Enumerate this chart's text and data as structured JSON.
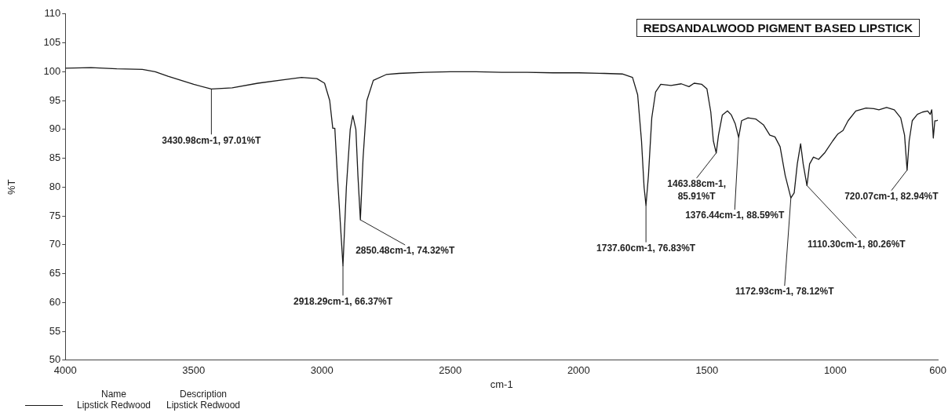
{
  "chart_data": {
    "type": "line",
    "title": "REDSANDALWOOD PIGMENT BASED LIPSTICK",
    "xlabel": "cm-1",
    "ylabel": "%T",
    "xlim": [
      4000,
      600
    ],
    "xticks": [
      4000,
      3500,
      3000,
      2500,
      2000,
      1500,
      1000,
      600
    ],
    "ylim": [
      50,
      110
    ],
    "yticks": [
      50,
      55,
      60,
      65,
      70,
      75,
      80,
      85,
      90,
      95,
      100,
      105,
      110
    ],
    "grid": false,
    "legend": "bottom left",
    "legend_title": "Name",
    "marker": "none",
    "line_style": "solid",
    "series": [
      {
        "name": "Lipstick Redwood",
        "color": "#1a1a1a",
        "x": [
          4000,
          3900,
          3800,
          3700,
          3650,
          3600,
          3500,
          3430.98,
          3350,
          3250,
          3150,
          3080,
          3020,
          2990,
          2970,
          2958,
          2950,
          2940,
          2918.29,
          2905,
          2890,
          2880,
          2868,
          2860,
          2850.48,
          2840,
          2825,
          2800,
          2750,
          2700,
          2600,
          2500,
          2400,
          2300,
          2200,
          2100,
          2000,
          1900,
          1830,
          1790,
          1770,
          1755,
          1745,
          1737.6,
          1728,
          1715,
          1700,
          1680,
          1640,
          1600,
          1570,
          1550,
          1520,
          1500,
          1485,
          1475,
          1463.88,
          1455,
          1440,
          1420,
          1405,
          1390,
          1376.44,
          1365,
          1340,
          1310,
          1280,
          1255,
          1235,
          1215,
          1195,
          1172.93,
          1160,
          1148,
          1135,
          1125,
          1110.3,
          1100,
          1085,
          1065,
          1040,
          1010,
          990,
          970,
          950,
          920,
          880,
          850,
          830,
          800,
          770,
          745,
          730,
          720.07,
          712,
          700,
          680,
          660,
          640,
          630,
          624,
          618,
          612,
          605,
          600
        ],
        "values": [
          100.6,
          100.7,
          100.5,
          100.4,
          100.0,
          99.2,
          97.8,
          97.01,
          97.2,
          98.0,
          98.6,
          99.0,
          98.8,
          98.0,
          95,
          90.2,
          90.2,
          82,
          66.37,
          80,
          90,
          92.4,
          90,
          82,
          74.32,
          85,
          95,
          98.5,
          99.5,
          99.7,
          99.9,
          100.0,
          100.0,
          99.9,
          99.9,
          99.8,
          99.8,
          99.7,
          99.6,
          99.0,
          96,
          88,
          80,
          76.83,
          82,
          92,
          96.5,
          97.8,
          97.6,
          97.9,
          97.4,
          98.0,
          97.8,
          97.0,
          93,
          88,
          85.91,
          89,
          92.5,
          93.2,
          92.5,
          91,
          88.59,
          91.5,
          92.0,
          91.8,
          90.8,
          89,
          88.7,
          87,
          82,
          78.12,
          79,
          84,
          87.5,
          84,
          80.26,
          84,
          85.2,
          84.8,
          86,
          88,
          89.2,
          89.8,
          91.5,
          93.2,
          93.7,
          93.6,
          93.4,
          93.8,
          93.4,
          92.0,
          89,
          82.94,
          88,
          91.5,
          92.6,
          93.0,
          93.2,
          92.6,
          93.4,
          88.5,
          91.5,
          91.5,
          91.6
        ]
      }
    ],
    "annotations": [
      {
        "text": "3430.98cm-1, 97.01%T",
        "x": 3430.98,
        "y": 97.01
      },
      {
        "text": "2918.29cm-1, 66.37%T",
        "x": 2918.29,
        "y": 66.37
      },
      {
        "text": "2850.48cm-1, 74.32%T",
        "x": 2850.48,
        "y": 74.32
      },
      {
        "text": "1737.60cm-1, 76.83%T",
        "x": 1737.6,
        "y": 76.83
      },
      {
        "text": "1463.88cm-1,\n85.91%T",
        "x": 1463.88,
        "y": 85.91
      },
      {
        "text": "1376.44cm-1, 88.59%T",
        "x": 1376.44,
        "y": 88.59
      },
      {
        "text": "1172.93cm-1, 78.12%T",
        "x": 1172.93,
        "y": 78.12
      },
      {
        "text": "1110.30cm-1, 80.26%T",
        "x": 1110.3,
        "y": 80.26
      },
      {
        "text": "720.07cm-1, 82.94%T",
        "x": 720.07,
        "y": 82.94
      },
      "Description",
      "Lipstick Redwood"
    ]
  }
}
